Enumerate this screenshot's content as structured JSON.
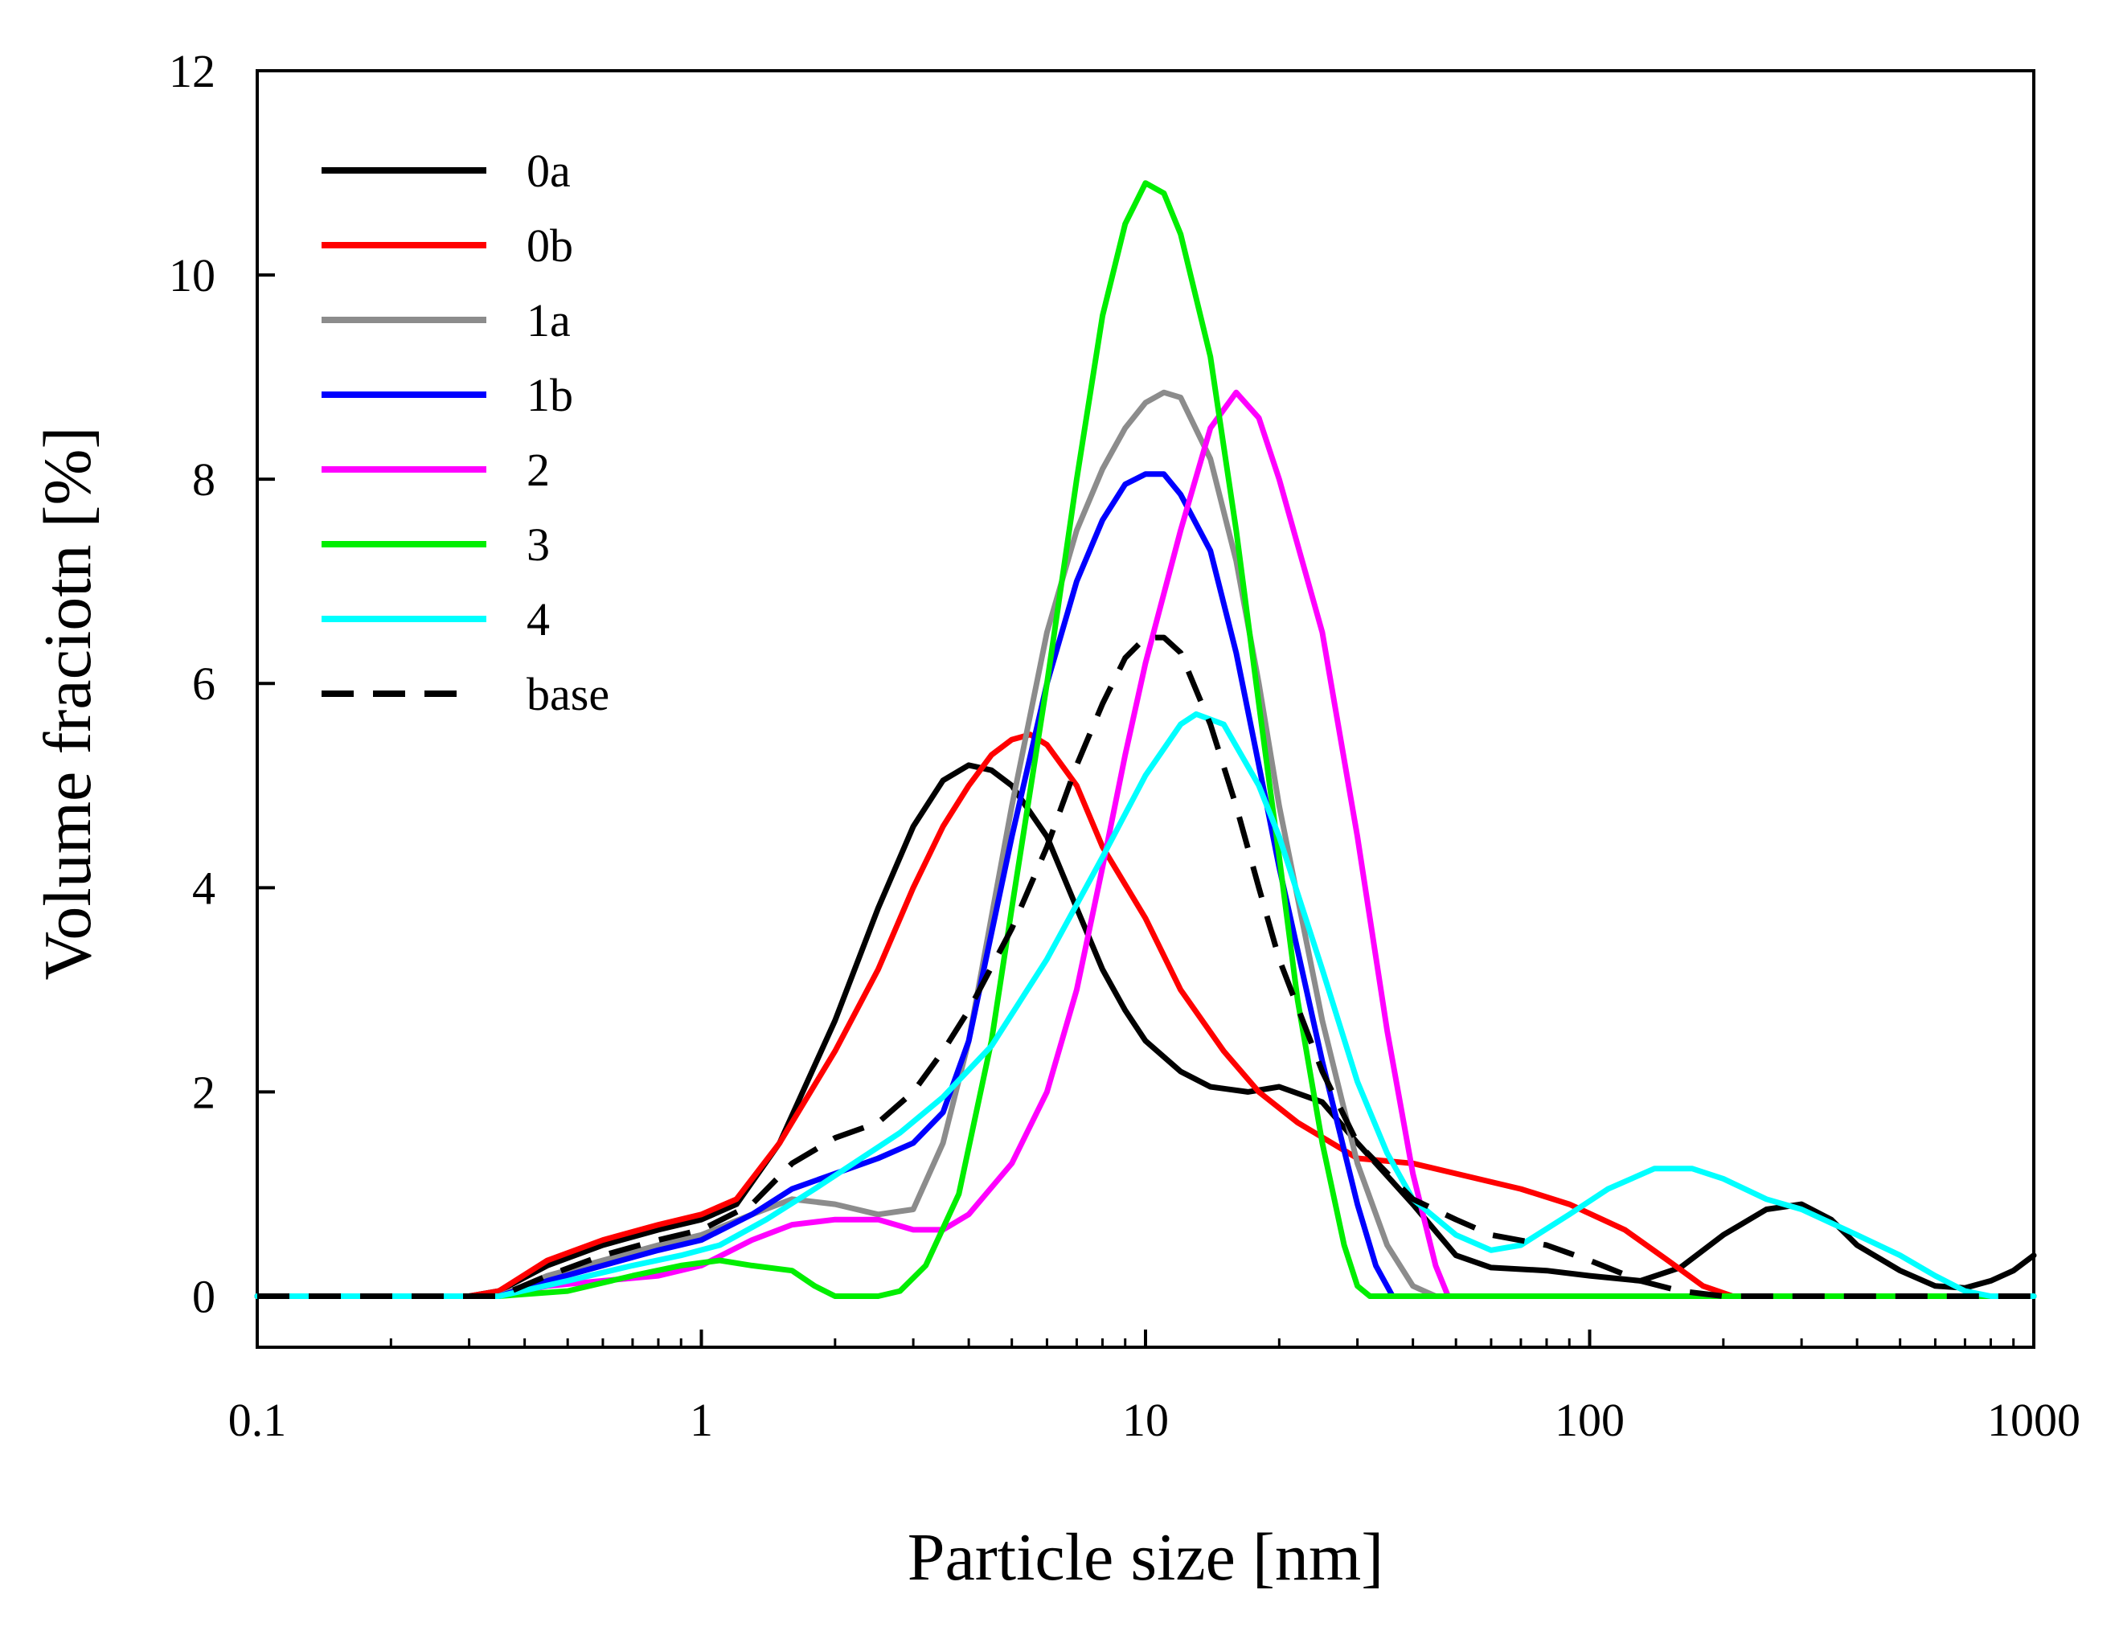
{
  "chart_data": {
    "type": "line",
    "title": "",
    "xlabel": "Particle size [nm]",
    "ylabel": "Volume fraciotn [%]",
    "xscale": "log",
    "xlim": [
      0.1,
      1000
    ],
    "ylim": [
      -0.5,
      12
    ],
    "x_ticks": [
      {
        "value": 0.1,
        "label": "0.1"
      },
      {
        "value": 1,
        "label": "1"
      },
      {
        "value": 10,
        "label": "10"
      },
      {
        "value": 100,
        "label": "100"
      },
      {
        "value": 1000,
        "label": "1000"
      }
    ],
    "y_ticks": [
      {
        "value": 0,
        "label": "0"
      },
      {
        "value": 2,
        "label": "2"
      },
      {
        "value": 4,
        "label": "4"
      },
      {
        "value": 6,
        "label": "6"
      },
      {
        "value": 8,
        "label": "8"
      },
      {
        "value": 10,
        "label": "10"
      },
      {
        "value": 12,
        "label": "12"
      }
    ],
    "grid": false,
    "legend_position": "top-left",
    "series": [
      {
        "name": "0a",
        "color": "#000000",
        "dash": "solid",
        "points": [
          [
            0.1,
            0
          ],
          [
            0.3,
            0
          ],
          [
            0.35,
            0.05
          ],
          [
            0.45,
            0.3
          ],
          [
            0.6,
            0.5
          ],
          [
            0.8,
            0.65
          ],
          [
            1.0,
            0.75
          ],
          [
            1.2,
            0.9
          ],
          [
            1.5,
            1.5
          ],
          [
            2.0,
            2.7
          ],
          [
            2.5,
            3.8
          ],
          [
            3.0,
            4.6
          ],
          [
            3.5,
            5.05
          ],
          [
            4.0,
            5.2
          ],
          [
            4.5,
            5.15
          ],
          [
            5.0,
            5.0
          ],
          [
            6.0,
            4.5
          ],
          [
            7.0,
            3.8
          ],
          [
            8.0,
            3.2
          ],
          [
            9.0,
            2.8
          ],
          [
            10.0,
            2.5
          ],
          [
            12.0,
            2.2
          ],
          [
            14.0,
            2.05
          ],
          [
            17.0,
            2.0
          ],
          [
            20.0,
            2.05
          ],
          [
            25.0,
            1.9
          ],
          [
            30.0,
            1.5
          ],
          [
            40.0,
            0.9
          ],
          [
            50.0,
            0.4
          ],
          [
            60.0,
            0.28
          ],
          [
            80.0,
            0.25
          ],
          [
            100.0,
            0.2
          ],
          [
            130.0,
            0.15
          ],
          [
            160.0,
            0.28
          ],
          [
            200.0,
            0.6
          ],
          [
            250.0,
            0.85
          ],
          [
            300.0,
            0.9
          ],
          [
            350.0,
            0.75
          ],
          [
            400.0,
            0.5
          ],
          [
            500.0,
            0.25
          ],
          [
            600.0,
            0.1
          ],
          [
            700.0,
            0.08
          ],
          [
            800.0,
            0.15
          ],
          [
            900.0,
            0.25
          ],
          [
            1000.0,
            0.4
          ]
        ]
      },
      {
        "name": "0b",
        "color": "#ff0000",
        "dash": "solid",
        "points": [
          [
            0.1,
            0
          ],
          [
            0.3,
            0
          ],
          [
            0.35,
            0.05
          ],
          [
            0.45,
            0.35
          ],
          [
            0.6,
            0.55
          ],
          [
            0.8,
            0.7
          ],
          [
            1.0,
            0.8
          ],
          [
            1.2,
            0.95
          ],
          [
            1.5,
            1.5
          ],
          [
            2.0,
            2.4
          ],
          [
            2.5,
            3.2
          ],
          [
            3.0,
            4.0
          ],
          [
            3.5,
            4.6
          ],
          [
            4.0,
            5.0
          ],
          [
            4.5,
            5.3
          ],
          [
            5.0,
            5.45
          ],
          [
            5.5,
            5.5
          ],
          [
            6.0,
            5.4
          ],
          [
            7.0,
            5.0
          ],
          [
            8.0,
            4.4
          ],
          [
            10.0,
            3.7
          ],
          [
            12.0,
            3.0
          ],
          [
            15.0,
            2.4
          ],
          [
            18.0,
            2.0
          ],
          [
            22.0,
            1.7
          ],
          [
            30.0,
            1.35
          ],
          [
            40.0,
            1.3
          ],
          [
            50.0,
            1.2
          ],
          [
            70.0,
            1.05
          ],
          [
            90.0,
            0.9
          ],
          [
            120.0,
            0.65
          ],
          [
            150.0,
            0.35
          ],
          [
            180.0,
            0.1
          ],
          [
            210.0,
            0.0
          ],
          [
            1000.0,
            0.0
          ]
        ]
      },
      {
        "name": "1a",
        "color": "#8c8c8c",
        "dash": "solid",
        "points": [
          [
            0.1,
            0
          ],
          [
            0.35,
            0
          ],
          [
            0.45,
            0.2
          ],
          [
            0.6,
            0.35
          ],
          [
            0.8,
            0.5
          ],
          [
            1.0,
            0.6
          ],
          [
            1.3,
            0.8
          ],
          [
            1.6,
            0.95
          ],
          [
            2.0,
            0.9
          ],
          [
            2.5,
            0.8
          ],
          [
            3.0,
            0.85
          ],
          [
            3.5,
            1.5
          ],
          [
            4.0,
            2.5
          ],
          [
            5.0,
            4.8
          ],
          [
            6.0,
            6.5
          ],
          [
            7.0,
            7.5
          ],
          [
            8.0,
            8.1
          ],
          [
            9.0,
            8.5
          ],
          [
            10.0,
            8.75
          ],
          [
            11.0,
            8.85
          ],
          [
            12.0,
            8.8
          ],
          [
            14.0,
            8.2
          ],
          [
            16.0,
            7.2
          ],
          [
            18.0,
            6.0
          ],
          [
            20.0,
            4.8
          ],
          [
            25.0,
            2.7
          ],
          [
            30.0,
            1.3
          ],
          [
            35.0,
            0.5
          ],
          [
            40.0,
            0.1
          ],
          [
            45.0,
            0.0
          ],
          [
            1000.0,
            0.0
          ]
        ]
      },
      {
        "name": "1b",
        "color": "#0000ff",
        "dash": "solid",
        "points": [
          [
            0.1,
            0
          ],
          [
            0.35,
            0
          ],
          [
            0.45,
            0.15
          ],
          [
            0.6,
            0.3
          ],
          [
            0.8,
            0.45
          ],
          [
            1.0,
            0.55
          ],
          [
            1.3,
            0.8
          ],
          [
            1.6,
            1.05
          ],
          [
            2.0,
            1.2
          ],
          [
            2.5,
            1.35
          ],
          [
            3.0,
            1.5
          ],
          [
            3.5,
            1.8
          ],
          [
            4.0,
            2.5
          ],
          [
            5.0,
            4.5
          ],
          [
            6.0,
            6.0
          ],
          [
            7.0,
            7.0
          ],
          [
            8.0,
            7.6
          ],
          [
            9.0,
            7.95
          ],
          [
            10.0,
            8.05
          ],
          [
            11.0,
            8.05
          ],
          [
            12.0,
            7.85
          ],
          [
            14.0,
            7.3
          ],
          [
            16.0,
            6.3
          ],
          [
            18.0,
            5.2
          ],
          [
            20.0,
            4.2
          ],
          [
            25.0,
            2.3
          ],
          [
            30.0,
            0.9
          ],
          [
            33.0,
            0.3
          ],
          [
            36.0,
            0.0
          ],
          [
            1000.0,
            0.0
          ]
        ]
      },
      {
        "name": "2",
        "color": "#ff00ff",
        "dash": "solid",
        "points": [
          [
            0.1,
            0
          ],
          [
            0.35,
            0
          ],
          [
            0.45,
            0.1
          ],
          [
            0.6,
            0.15
          ],
          [
            0.8,
            0.2
          ],
          [
            1.0,
            0.3
          ],
          [
            1.3,
            0.55
          ],
          [
            1.6,
            0.7
          ],
          [
            2.0,
            0.75
          ],
          [
            2.5,
            0.75
          ],
          [
            3.0,
            0.65
          ],
          [
            3.5,
            0.65
          ],
          [
            4.0,
            0.8
          ],
          [
            5.0,
            1.3
          ],
          [
            6.0,
            2.0
          ],
          [
            7.0,
            3.0
          ],
          [
            8.0,
            4.2
          ],
          [
            9.0,
            5.3
          ],
          [
            10.0,
            6.2
          ],
          [
            12.0,
            7.5
          ],
          [
            14.0,
            8.5
          ],
          [
            16.0,
            8.85
          ],
          [
            18.0,
            8.6
          ],
          [
            20.0,
            8.0
          ],
          [
            25.0,
            6.5
          ],
          [
            30.0,
            4.5
          ],
          [
            35.0,
            2.6
          ],
          [
            40.0,
            1.2
          ],
          [
            45.0,
            0.3
          ],
          [
            48.0,
            0.0
          ],
          [
            1000.0,
            0.0
          ]
        ]
      },
      {
        "name": "3",
        "color": "#00ee00",
        "dash": "solid",
        "points": [
          [
            0.1,
            0
          ],
          [
            0.35,
            0
          ],
          [
            0.5,
            0.05
          ],
          [
            0.7,
            0.2
          ],
          [
            0.9,
            0.3
          ],
          [
            1.1,
            0.35
          ],
          [
            1.3,
            0.3
          ],
          [
            1.6,
            0.25
          ],
          [
            1.8,
            0.1
          ],
          [
            2.0,
            0.0
          ],
          [
            2.5,
            0.0
          ],
          [
            2.8,
            0.05
          ],
          [
            3.2,
            0.3
          ],
          [
            3.8,
            1.0
          ],
          [
            4.5,
            2.5
          ],
          [
            5.0,
            3.8
          ],
          [
            6.0,
            6.0
          ],
          [
            7.0,
            8.0
          ],
          [
            8.0,
            9.6
          ],
          [
            9.0,
            10.5
          ],
          [
            10.0,
            10.9
          ],
          [
            11.0,
            10.8
          ],
          [
            12.0,
            10.4
          ],
          [
            14.0,
            9.2
          ],
          [
            16.0,
            7.5
          ],
          [
            18.0,
            5.8
          ],
          [
            20.0,
            4.3
          ],
          [
            22.0,
            2.9
          ],
          [
            25.0,
            1.5
          ],
          [
            28.0,
            0.5
          ],
          [
            30.0,
            0.1
          ],
          [
            32.0,
            0.0
          ],
          [
            1000.0,
            0.0
          ]
        ]
      },
      {
        "name": "4",
        "color": "#00ffff",
        "dash": "solid",
        "points": [
          [
            0.1,
            0
          ],
          [
            0.35,
            0
          ],
          [
            0.5,
            0.15
          ],
          [
            0.7,
            0.3
          ],
          [
            0.9,
            0.4
          ],
          [
            1.1,
            0.5
          ],
          [
            1.4,
            0.75
          ],
          [
            1.8,
            1.05
          ],
          [
            2.2,
            1.3
          ],
          [
            2.8,
            1.6
          ],
          [
            3.5,
            1.95
          ],
          [
            4.5,
            2.45
          ],
          [
            6.0,
            3.3
          ],
          [
            8.0,
            4.3
          ],
          [
            10.0,
            5.1
          ],
          [
            12.0,
            5.6
          ],
          [
            13.0,
            5.7
          ],
          [
            15.0,
            5.6
          ],
          [
            18.0,
            5.0
          ],
          [
            20.0,
            4.5
          ],
          [
            25.0,
            3.2
          ],
          [
            30.0,
            2.1
          ],
          [
            35.0,
            1.4
          ],
          [
            40.0,
            0.95
          ],
          [
            50.0,
            0.6
          ],
          [
            60.0,
            0.45
          ],
          [
            70.0,
            0.5
          ],
          [
            90.0,
            0.8
          ],
          [
            110.0,
            1.05
          ],
          [
            140.0,
            1.25
          ],
          [
            170.0,
            1.25
          ],
          [
            200.0,
            1.15
          ],
          [
            250.0,
            0.95
          ],
          [
            300.0,
            0.85
          ],
          [
            400.0,
            0.6
          ],
          [
            500.0,
            0.4
          ],
          [
            600.0,
            0.2
          ],
          [
            700.0,
            0.05
          ],
          [
            800.0,
            0.0
          ],
          [
            1000.0,
            0.0
          ]
        ]
      },
      {
        "name": "base",
        "color": "#000000",
        "dash": "dashed",
        "points": [
          [
            0.1,
            0
          ],
          [
            0.35,
            0
          ],
          [
            0.45,
            0.2
          ],
          [
            0.6,
            0.4
          ],
          [
            0.8,
            0.55
          ],
          [
            1.0,
            0.65
          ],
          [
            1.3,
            0.9
          ],
          [
            1.6,
            1.3
          ],
          [
            2.0,
            1.55
          ],
          [
            2.5,
            1.7
          ],
          [
            3.0,
            2.0
          ],
          [
            3.5,
            2.4
          ],
          [
            4.0,
            2.8
          ],
          [
            5.0,
            3.6
          ],
          [
            6.0,
            4.4
          ],
          [
            7.0,
            5.2
          ],
          [
            8.0,
            5.8
          ],
          [
            9.0,
            6.25
          ],
          [
            10.0,
            6.45
          ],
          [
            11.0,
            6.45
          ],
          [
            12.0,
            6.3
          ],
          [
            14.0,
            5.6
          ],
          [
            16.0,
            4.8
          ],
          [
            18.0,
            4.0
          ],
          [
            20.0,
            3.3
          ],
          [
            25.0,
            2.2
          ],
          [
            30.0,
            1.5
          ],
          [
            40.0,
            0.95
          ],
          [
            50.0,
            0.75
          ],
          [
            60.0,
            0.6
          ],
          [
            80.0,
            0.5
          ],
          [
            100.0,
            0.35
          ],
          [
            130.0,
            0.15
          ],
          [
            160.0,
            0.05
          ],
          [
            200.0,
            0.0
          ],
          [
            1000.0,
            0.0
          ]
        ]
      }
    ]
  }
}
